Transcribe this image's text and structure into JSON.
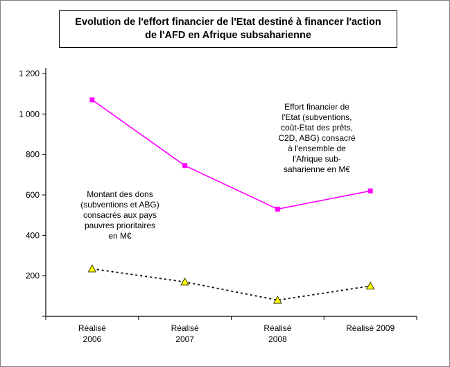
{
  "chart_data": {
    "type": "line",
    "title": "Evolution de l'effort financier de l'Etat destiné à financer l'action\nde l'AFD en Afrique subsaharienne",
    "categories": [
      "Réalisé\n2006",
      "Réalisé\n2007",
      "Réalisé\n2008",
      "Réalisé 2009"
    ],
    "series": [
      {
        "name": "Effort financier de l'Etat (subventions, coût-Etat des prêts, C2D, ABG) consacré à l'ensemble de l'Afrique sub-saharienne en M€",
        "values": [
          1070,
          745,
          530,
          620
        ],
        "color": "#FF00FF",
        "marker": "square",
        "line_style": "solid"
      },
      {
        "name": "Montant des dons (subventions et ABG) consacrés aux pays pauvres prioritaires en M€",
        "values": [
          235,
          170,
          80,
          150
        ],
        "color": "#000000",
        "marker": "triangle",
        "marker_fill": "#FFFF00",
        "marker_stroke": "#404000",
        "line_style": "dashed"
      }
    ],
    "ylim": [
      0,
      1200
    ],
    "yticks": [
      {
        "value": 1200,
        "label": "1 200"
      },
      {
        "value": 1000,
        "label": "1 000"
      },
      {
        "value": 800,
        "label": "800"
      },
      {
        "value": 600,
        "label": "600"
      },
      {
        "value": 400,
        "label": "400"
      },
      {
        "value": 200,
        "label": "200"
      }
    ],
    "grid": false,
    "legend": "none",
    "annotations": [
      {
        "id": "effort",
        "text": "Effort financier de\nl'Etat (subventions,\ncoût-Etat des prêts,\nC2D, ABG) consacré\nà l'ensemble de\nl'Afrique sub-\nsaharienne en M€"
      },
      {
        "id": "dons",
        "text": "Montant des dons\n(subventions et ABG)\nconsacrés aux pays\npauvres prioritaires\nen M€"
      }
    ]
  }
}
